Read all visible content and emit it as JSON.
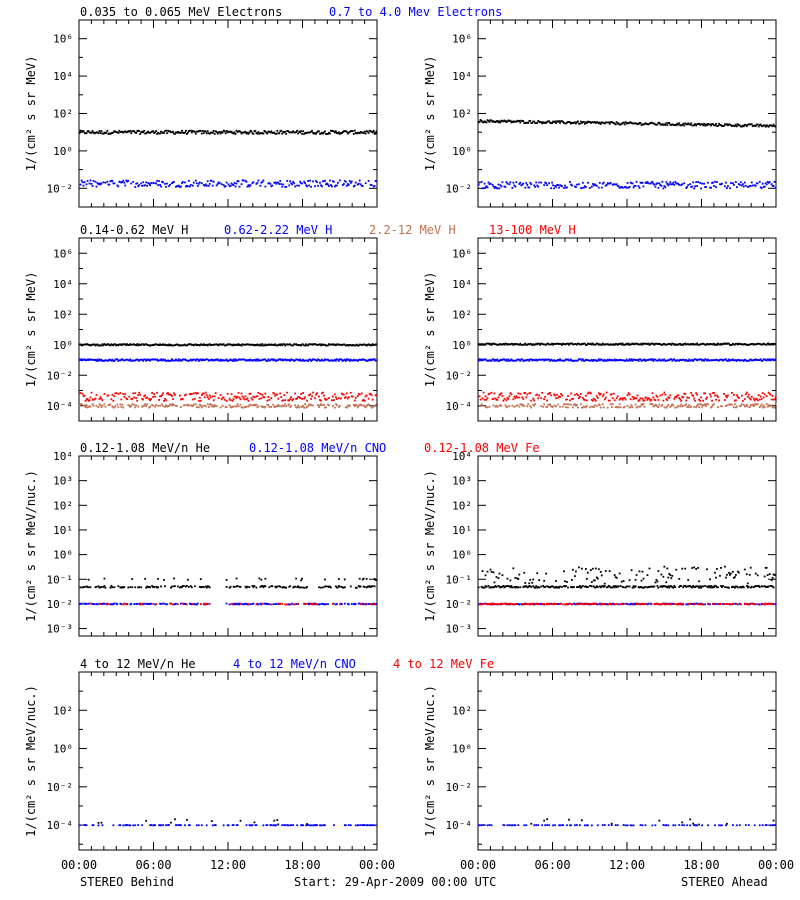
{
  "colors": {
    "black": "#000000",
    "blue": "#0000ff",
    "brown": "#c07050",
    "red": "#ff0000"
  },
  "footer": {
    "left_label": "STEREO Behind",
    "center_label": "Start: 29-Apr-2009 00:00 UTC",
    "right_label": "STEREO Ahead"
  },
  "chart_data": [
    {
      "type": "scatter",
      "row": "electrons",
      "spacecraft": "STEREO Behind",
      "legend": [
        {
          "text": "0.035 to 0.065 MeV Electrons",
          "color": "#000000"
        },
        {
          "text": "0.7 to 4.0 Mev Electrons",
          "color": "#0000ff"
        }
      ],
      "ylabel": "1/(cm² s sr MeV)",
      "yscale": "log",
      "ylim": [
        0.001,
        10000000
      ],
      "ytick_exps": [
        -2,
        0,
        2,
        4,
        6
      ],
      "xlim": [
        0,
        24
      ],
      "xtick_labels": [
        "00:00",
        "06:00",
        "12:00",
        "18:00",
        "00:00"
      ],
      "series": [
        {
          "color": "#000000",
          "level": 10,
          "spread": 0.09,
          "density": 1.0,
          "dips": []
        },
        {
          "color": "#0000ff",
          "level": 0.018,
          "spread": 0.18,
          "density": 0.8,
          "dips": []
        }
      ]
    },
    {
      "type": "scatter",
      "row": "electrons",
      "spacecraft": "STEREO Ahead",
      "legend": [],
      "ylabel": "1/(cm² s sr MeV)",
      "yscale": "log",
      "ylim": [
        0.001,
        10000000
      ],
      "ytick_exps": [
        -2,
        0,
        2,
        4,
        6
      ],
      "xlim": [
        0,
        24
      ],
      "xtick_labels": [
        "00:00",
        "06:00",
        "12:00",
        "18:00",
        "00:00"
      ],
      "series": [
        {
          "color": "#000000",
          "level": 40,
          "level_end": 22,
          "spread": 0.07,
          "density": 1.0,
          "dips": []
        },
        {
          "color": "#0000ff",
          "level": 0.015,
          "spread": 0.18,
          "density": 0.8,
          "dips": []
        }
      ]
    },
    {
      "type": "scatter",
      "row": "protons",
      "spacecraft": "STEREO Behind",
      "legend": [
        {
          "text": "0.14-0.62 MeV H",
          "color": "#000000"
        },
        {
          "text": "0.62-2.22 MeV H",
          "color": "#0000ff"
        },
        {
          "text": "2.2-12 MeV H",
          "color": "#c07050"
        },
        {
          "text": "13-100 MeV H",
          "color": "#ff0000"
        }
      ],
      "ylabel": "1/(cm² s sr MeV)",
      "yscale": "log",
      "ylim": [
        1e-05,
        10000000
      ],
      "ytick_exps": [
        -4,
        -2,
        0,
        2,
        4,
        6
      ],
      "xlim": [
        0,
        24
      ],
      "xtick_labels": [
        "00:00",
        "06:00",
        "12:00",
        "18:00",
        "00:00"
      ],
      "series": [
        {
          "color": "#000000",
          "level": 1.0,
          "spread": 0.05,
          "density": 1.0,
          "dips": []
        },
        {
          "color": "#0000ff",
          "level": 0.1,
          "spread": 0.06,
          "density": 1.0,
          "dips": []
        },
        {
          "color": "#c07050",
          "level": 0.0001,
          "spread": 0.12,
          "density": 0.7,
          "dips": []
        },
        {
          "color": "#ff0000",
          "level": 0.0004,
          "spread": 0.28,
          "density": 0.8,
          "dips": []
        }
      ]
    },
    {
      "type": "scatter",
      "row": "protons",
      "spacecraft": "STEREO Ahead",
      "legend": [],
      "ylabel": "1/(cm² s sr MeV)",
      "yscale": "log",
      "ylim": [
        1e-05,
        10000000
      ],
      "ytick_exps": [
        -4,
        -2,
        0,
        2,
        4,
        6
      ],
      "xlim": [
        0,
        24
      ],
      "xtick_labels": [
        "00:00",
        "06:00",
        "12:00",
        "18:00",
        "00:00"
      ],
      "series": [
        {
          "color": "#000000",
          "level": 1.1,
          "spread": 0.05,
          "density": 1.0,
          "dips": []
        },
        {
          "color": "#0000ff",
          "level": 0.1,
          "spread": 0.06,
          "density": 1.0,
          "dips": []
        },
        {
          "color": "#c07050",
          "level": 0.0001,
          "spread": 0.12,
          "density": 0.7,
          "dips": []
        },
        {
          "color": "#ff0000",
          "level": 0.0004,
          "spread": 0.28,
          "density": 0.8,
          "dips": []
        }
      ]
    },
    {
      "type": "scatter",
      "row": "heavy-low",
      "spacecraft": "STEREO Behind",
      "legend": [
        {
          "text": "0.12-1.08 MeV/n He",
          "color": "#000000"
        },
        {
          "text": "0.12-1.08 MeV/n CNO",
          "color": "#0000ff"
        },
        {
          "text": "0.12-1.08 MeV Fe",
          "color": "#ff0000"
        }
      ],
      "ylabel": "1/(cm² s sr MeV/nuc.)",
      "yscale": "log",
      "ylim": [
        0.0005,
        10000
      ],
      "ytick_exps": [
        -3,
        -2,
        -1,
        0,
        1,
        2,
        3,
        4
      ],
      "xlim": [
        0,
        24
      ],
      "xtick_labels": [
        "00:00",
        "06:00",
        "12:00",
        "18:00",
        "00:00"
      ],
      "series": [
        {
          "color": "#000000",
          "level": 0.05,
          "spread": 0.04,
          "density": 0.55,
          "dips": [
            [
              10.6,
              11.8
            ],
            [
              18.5,
              19.3
            ]
          ]
        },
        {
          "color": "#000000",
          "level": 0.1,
          "spread": 0.04,
          "density": 0.12,
          "dips": []
        },
        {
          "color": "#0000ff",
          "level": 0.01,
          "spread": 0.02,
          "density": 0.6,
          "dips": [
            [
              10.6,
              11.8
            ]
          ]
        },
        {
          "color": "#ff0000",
          "level": 0.01,
          "spread": 0.02,
          "density": 0.2,
          "dips": [
            [
              10.6,
              11.8
            ]
          ]
        }
      ]
    },
    {
      "type": "scatter",
      "row": "heavy-low",
      "spacecraft": "STEREO Ahead",
      "legend": [],
      "ylabel": "1/(cm² s sr MeV/nuc.)",
      "yscale": "log",
      "ylim": [
        0.0005,
        10000
      ],
      "ytick_exps": [
        -3,
        -2,
        -1,
        0,
        1,
        2,
        3,
        4
      ],
      "xlim": [
        0,
        24
      ],
      "xtick_labels": [
        "00:00",
        "06:00",
        "12:00",
        "18:00",
        "00:00"
      ],
      "series": [
        {
          "color": "#000000",
          "level": 0.05,
          "spread": 0.04,
          "density": 0.8,
          "dips": []
        },
        {
          "color": "#000000",
          "level": 0.15,
          "spread": 0.35,
          "density": 0.45,
          "dips": []
        },
        {
          "color": "#0000ff",
          "level": 0.01,
          "spread": 0.02,
          "density": 0.7,
          "dips": []
        },
        {
          "color": "#ff0000",
          "level": 0.01,
          "spread": 0.02,
          "density": 0.5,
          "dips": []
        }
      ]
    },
    {
      "type": "scatter",
      "row": "heavy-high",
      "spacecraft": "STEREO Behind",
      "legend": [
        {
          "text": "4 to 12 MeV/n He",
          "color": "#000000"
        },
        {
          "text": "4 to 12 MeV/n CNO",
          "color": "#0000ff"
        },
        {
          "text": "4 to 12 MeV Fe",
          "color": "#ff0000"
        }
      ],
      "ylabel": "1/(cm² s sr MeV/nuc.)",
      "yscale": "log",
      "ylim": [
        5e-06,
        10000
      ],
      "ytick_exps": [
        -4,
        -2,
        0,
        2
      ],
      "xlim": [
        0,
        24
      ],
      "xtick_labels": [
        "00:00",
        "06:00",
        "12:00",
        "18:00",
        "00:00"
      ],
      "series": [
        {
          "color": "#0000ff",
          "level": 0.0001,
          "spread": 0.01,
          "density": 0.35,
          "dips": []
        },
        {
          "color": "#000000",
          "level": 0.00015,
          "spread": 0.15,
          "density": 0.05,
          "dips": []
        }
      ]
    },
    {
      "type": "scatter",
      "row": "heavy-high",
      "spacecraft": "STEREO Ahead",
      "legend": [],
      "ylabel": "1/(cm² s sr MeV/nuc.)",
      "yscale": "log",
      "ylim": [
        5e-06,
        10000
      ],
      "ytick_exps": [
        -4,
        -2,
        0,
        2
      ],
      "xlim": [
        0,
        24
      ],
      "xtick_labels": [
        "00:00",
        "06:00",
        "12:00",
        "18:00",
        "00:00"
      ],
      "series": [
        {
          "color": "#0000ff",
          "level": 0.0001,
          "spread": 0.01,
          "density": 0.3,
          "dips": []
        },
        {
          "color": "#000000",
          "level": 0.00015,
          "spread": 0.15,
          "density": 0.05,
          "dips": []
        }
      ]
    }
  ]
}
